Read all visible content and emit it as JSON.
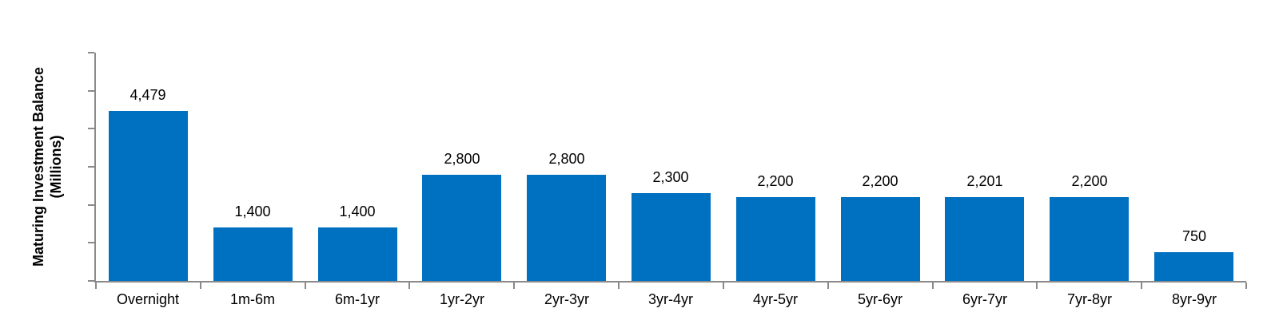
{
  "chart_data": {
    "type": "bar",
    "title": "",
    "ylabel": "Maturing Investment Balance (Millions)",
    "ylabel_lines": [
      "Maturing Investment Balance",
      "(Millions)"
    ],
    "xlabel": "",
    "categories": [
      "Overnight",
      "1m-6m",
      "6m-1yr",
      "1yr-2yr",
      "2yr-3yr",
      "3yr-4yr",
      "4yr-5yr",
      "5yr-6yr",
      "6yr-7yr",
      "7yr-8yr",
      "8yr-9yr"
    ],
    "values": [
      4479,
      1400,
      1400,
      2800,
      2800,
      2300,
      2200,
      2200,
      2201,
      2200,
      750
    ],
    "value_labels": [
      "4,479",
      "1,400",
      "1,400",
      "2,800",
      "2,800",
      "2,300",
      "2,200",
      "2,200",
      "2,201",
      "2,200",
      "750"
    ],
    "ylim": [
      0,
      6000
    ],
    "ytick_count": 7,
    "ytick_labels_visible": false,
    "gridlines": false,
    "legend_position": "none",
    "colors": {
      "bar": "#0070c0",
      "axis": "#8a8a8a",
      "text": "#000000"
    }
  }
}
